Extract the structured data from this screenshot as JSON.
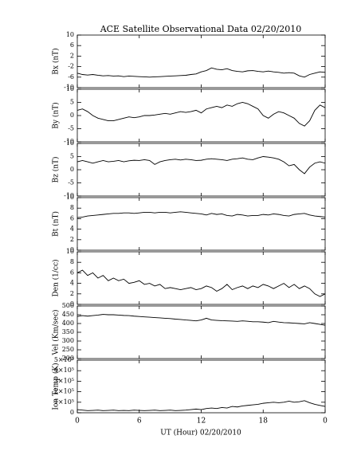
{
  "chart_data": {
    "type": "line",
    "title": "ACE Satellite Observational Data   02/20/2010",
    "xlabel": "UT (Hour)   02/20/2010",
    "xlim": [
      0,
      24
    ],
    "xticks": [
      0,
      6,
      12,
      18,
      {
        "value": 24,
        "label": "0"
      }
    ],
    "x": [
      0,
      0.5,
      1,
      1.5,
      2,
      2.5,
      3,
      3.5,
      4,
      4.5,
      5,
      5.5,
      6,
      6.5,
      7,
      7.5,
      8,
      8.5,
      9,
      9.5,
      10,
      10.5,
      11,
      11.5,
      12,
      12.5,
      13,
      13.5,
      14,
      14.5,
      15,
      15.5,
      16,
      16.5,
      17,
      17.5,
      18,
      18.5,
      19,
      19.5,
      20,
      20.5,
      21,
      21.5,
      22,
      22.5,
      23,
      23.5,
      24
    ],
    "color": "#000000",
    "panels": [
      {
        "ylabel": "Bx (nT)",
        "ylim": [
          -10,
          10
        ],
        "yticks": [
          10,
          6,
          2,
          -2,
          -6,
          -10
        ],
        "values": [
          -4.5,
          -5,
          -5.2,
          -5,
          -5.3,
          -5.5,
          -5.4,
          -5.6,
          -5.5,
          -5.8,
          -5.6,
          -5.7,
          -5.8,
          -5.9,
          -6,
          -5.9,
          -5.8,
          -5.7,
          -5.6,
          -5.5,
          -5.4,
          -5.3,
          -5,
          -4.8,
          -4,
          -3.5,
          -2.5,
          -3,
          -3.2,
          -2.8,
          -3.5,
          -3.8,
          -4,
          -3.6,
          -3.5,
          -3.8,
          -4,
          -3.7,
          -4,
          -4.2,
          -4.5,
          -4.3,
          -4.5,
          -5.5,
          -6,
          -5,
          -4.5,
          -4,
          -4.2
        ]
      },
      {
        "ylabel": "By (nT)",
        "ylim": [
          -10,
          10
        ],
        "yticks": [
          10,
          5,
          0,
          -5,
          -10
        ],
        "values": [
          2,
          2.5,
          1.5,
          0,
          -1,
          -1.5,
          -2,
          -2,
          -1.5,
          -1,
          -0.5,
          -0.8,
          -0.5,
          0,
          0,
          0.2,
          0.5,
          0.8,
          0.5,
          1,
          1.5,
          1.2,
          1.5,
          2,
          1,
          2.5,
          3,
          3.5,
          3,
          4,
          3.5,
          4.5,
          5,
          4.5,
          3.5,
          2.5,
          0,
          -1,
          0.5,
          1.5,
          1,
          0,
          -1,
          -3,
          -4,
          -2,
          2,
          4,
          3
        ]
      },
      {
        "ylabel": "Bz (nT)",
        "ylim": [
          -10,
          10
        ],
        "yticks": [
          10,
          5,
          0,
          -5,
          -10
        ],
        "values": [
          3,
          3.5,
          3,
          2.5,
          3,
          3.5,
          3,
          3.2,
          3.5,
          3,
          3.4,
          3.6,
          3.5,
          3.8,
          3.5,
          2,
          3,
          3.5,
          3.8,
          4,
          3.7,
          4,
          3.8,
          3.5,
          3.6,
          4,
          4.2,
          4,
          3.8,
          3.5,
          4,
          4.2,
          4.5,
          4,
          3.8,
          4.5,
          5,
          4.8,
          4.5,
          4,
          3,
          1.5,
          2,
          0,
          -1.5,
          1,
          2.5,
          3,
          2.5
        ]
      },
      {
        "ylabel": "Bt (nT)",
        "ylim": [
          0,
          10
        ],
        "yticks": [
          10,
          8,
          6,
          4,
          2,
          0
        ],
        "values": [
          6.2,
          6.3,
          6.5,
          6.6,
          6.7,
          6.8,
          6.9,
          7,
          7,
          7.1,
          7.1,
          7,
          7.1,
          7.2,
          7.2,
          7.1,
          7.2,
          7.2,
          7.1,
          7.2,
          7.3,
          7.2,
          7.1,
          7,
          6.9,
          6.7,
          7,
          6.8,
          6.9,
          6.6,
          6.5,
          6.8,
          6.7,
          6.5,
          6.6,
          6.6,
          6.8,
          6.7,
          6.9,
          6.8,
          6.6,
          6.5,
          6.8,
          6.9,
          7,
          6.7,
          6.5,
          6.4,
          6.3
        ]
      },
      {
        "ylabel": "Den (1/cc)",
        "ylim": [
          0,
          10
        ],
        "yticks": [
          10,
          8,
          6,
          4,
          2,
          0
        ],
        "values": [
          6,
          6.5,
          5.5,
          6,
          5,
          5.5,
          4.5,
          5,
          4.5,
          4.8,
          4,
          4.2,
          4.5,
          3.8,
          4,
          3.5,
          3.8,
          3,
          3.2,
          3,
          2.8,
          3,
          3.2,
          2.8,
          3,
          3.5,
          3.2,
          2.5,
          3,
          3.8,
          2.8,
          3.2,
          3.5,
          3,
          3.5,
          3.2,
          3.8,
          3.5,
          3,
          3.5,
          4,
          3.2,
          3.8,
          3,
          3.5,
          3,
          2,
          1.5,
          2
        ]
      },
      {
        "ylabel": "Vel (Km/sec)",
        "ylim": [
          200,
          500
        ],
        "yticks": [
          500,
          450,
          400,
          350,
          300,
          250,
          200
        ],
        "values": [
          440,
          445,
          442,
          445,
          448,
          452,
          450,
          450,
          448,
          446,
          445,
          442,
          440,
          438,
          436,
          434,
          432,
          430,
          428,
          425,
          423,
          420,
          418,
          415,
          420,
          430,
          420,
          418,
          416,
          415,
          414,
          412,
          415,
          413,
          410,
          410,
          408,
          405,
          412,
          408,
          405,
          404,
          402,
          400,
          398,
          405,
          400,
          395,
          390
        ]
      },
      {
        "ylabel": "Ion Temp (K)",
        "ylim": [
          0,
          500000
        ],
        "yticks": [
          {
            "value": 500000,
            "label": "5×10⁵"
          },
          {
            "value": 400000,
            "label": "4×10⁵"
          },
          {
            "value": 300000,
            "label": "3×10⁵"
          },
          {
            "value": 200000,
            "label": "2×10⁵"
          },
          {
            "value": 100000,
            "label": "1×10⁵"
          },
          0
        ],
        "values": [
          30000,
          25000,
          20000,
          22000,
          25000,
          20000,
          22000,
          25000,
          20000,
          22000,
          20000,
          25000,
          22000,
          20000,
          22000,
          25000,
          20000,
          22000,
          25000,
          20000,
          22000,
          25000,
          30000,
          35000,
          30000,
          40000,
          45000,
          40000,
          50000,
          45000,
          60000,
          55000,
          65000,
          70000,
          75000,
          80000,
          90000,
          95000,
          100000,
          95000,
          100000,
          110000,
          100000,
          105000,
          115000,
          95000,
          80000,
          70000,
          60000
        ]
      }
    ]
  }
}
